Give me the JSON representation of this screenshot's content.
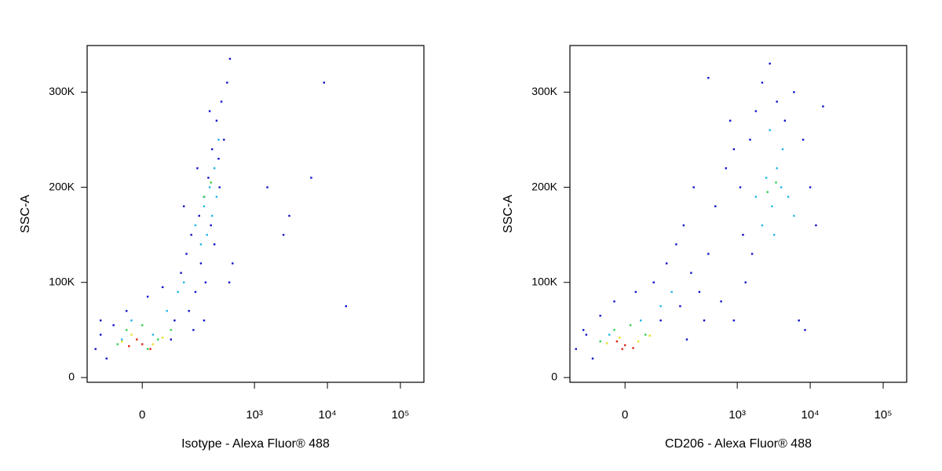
{
  "chart_data": [
    {
      "type": "scatter",
      "xlabel": "Isotype - Alexa Fluor® 488",
      "ylabel": "SSC-A",
      "xscale": "biexponential",
      "xlim": [
        -160,
        210000
      ],
      "ylim": [
        -5000,
        349000
      ],
      "xticks": [
        0,
        {
          "value": 1000,
          "label": "10³"
        },
        {
          "value": 10000,
          "label": "10⁴"
        },
        {
          "value": 100000,
          "label": "10⁵"
        }
      ],
      "yticks": [
        0,
        {
          "value": 100000,
          "label": "100K"
        },
        {
          "value": 200000,
          "label": "200K"
        },
        {
          "value": 300000,
          "label": "300K"
        }
      ],
      "series": [
        {
          "color": "#1010c8",
          "x": [
            -120,
            -100,
            -80,
            -60,
            -30,
            10,
            40,
            70,
            90,
            110,
            130,
            150,
            170,
            200,
            230,
            260,
            300,
            350,
            420,
            460,
            120,
            180,
            250,
            320,
            1500,
            3000,
            6000,
            9000,
            18000,
            2500,
            -100,
            60,
            140,
            210,
            280,
            380,
            100,
            160,
            240,
            330,
            200,
            450,
            500
          ],
          "values": [
            30000,
            45000,
            20000,
            55000,
            70000,
            85000,
            95000,
            60000,
            110000,
            130000,
            150000,
            90000,
            170000,
            190000,
            210000,
            240000,
            270000,
            290000,
            310000,
            335000,
            70000,
            120000,
            160000,
            230000,
            200000,
            170000,
            210000,
            310000,
            75000,
            150000,
            60000,
            40000,
            50000,
            100000,
            140000,
            250000,
            180000,
            220000,
            280000,
            200000,
            60000,
            100000,
            120000
          ]
        },
        {
          "color": "#20b4e8",
          "x": [
            -40,
            -20,
            20,
            50,
            80,
            150,
            200,
            240,
            280,
            300,
            260,
            220,
            180,
            320,
            100
          ],
          "values": [
            40000,
            60000,
            45000,
            70000,
            90000,
            160000,
            180000,
            200000,
            220000,
            190000,
            170000,
            150000,
            140000,
            250000,
            100000
          ]
        },
        {
          "color": "#30d050",
          "x": [
            -30,
            0,
            30,
            60,
            -50,
            10,
            200,
            250
          ],
          "values": [
            50000,
            55000,
            40000,
            50000,
            35000,
            30000,
            190000,
            205000
          ]
        },
        {
          "color": "#e8e020",
          "x": [
            -20,
            20,
            40,
            -40
          ],
          "values": [
            45000,
            35000,
            42000,
            38000
          ]
        },
        {
          "color": "#e02010",
          "x": [
            0,
            -10,
            15,
            -25
          ],
          "values": [
            35000,
            40000,
            30000,
            33000
          ]
        }
      ]
    },
    {
      "type": "scatter",
      "xlabel": "CD206 - Alexa Fluor® 488",
      "ylabel": "SSC-A",
      "xscale": "biexponential",
      "xlim": [
        -160,
        210000
      ],
      "ylim": [
        -5000,
        349000
      ],
      "xticks": [
        0,
        {
          "value": 1000,
          "label": "10³"
        },
        {
          "value": 10000,
          "label": "10⁴"
        },
        {
          "value": 100000,
          "label": "10⁵"
        }
      ],
      "yticks": [
        0,
        {
          "value": 100000,
          "label": "100K"
        },
        {
          "value": 200000,
          "label": "200K"
        },
        {
          "value": 300000,
          "label": "300K"
        }
      ],
      "series": [
        {
          "color": "#1010c8",
          "x": [
            -130,
            -100,
            -70,
            -50,
            -20,
            20,
            60,
            100,
            140,
            180,
            230,
            300,
            400,
            500,
            600,
            700,
            900,
            1200,
            1500,
            1800,
            2200,
            2800,
            3500,
            4500,
            6000,
            8000,
            10000,
            12000,
            7000,
            8500,
            15000,
            900,
            1100,
            1300,
            1600,
            400,
            800,
            250,
            160,
            80,
            -90,
            200,
            350
          ],
          "values": [
            30000,
            50000,
            20000,
            65000,
            80000,
            90000,
            100000,
            120000,
            140000,
            160000,
            110000,
            90000,
            130000,
            180000,
            80000,
            220000,
            60000,
            150000,
            250000,
            280000,
            310000,
            330000,
            290000,
            270000,
            300000,
            250000,
            200000,
            160000,
            60000,
            50000,
            285000,
            240000,
            200000,
            100000,
            130000,
            315000,
            270000,
            200000,
            75000,
            60000,
            45000,
            40000,
            60000
          ]
        },
        {
          "color": "#20b4e8",
          "x": [
            1800,
            2500,
            3000,
            3500,
            4000,
            5000,
            2200,
            4200,
            6000,
            3200,
            -30,
            30,
            80,
            120,
            2800
          ],
          "values": [
            190000,
            210000,
            180000,
            220000,
            200000,
            190000,
            160000,
            240000,
            170000,
            150000,
            45000,
            60000,
            75000,
            90000,
            260000
          ]
        },
        {
          "color": "#30d050",
          "x": [
            -20,
            10,
            40,
            -50,
            2600,
            3400
          ],
          "values": [
            50000,
            55000,
            45000,
            38000,
            195000,
            205000
          ]
        },
        {
          "color": "#e8e020",
          "x": [
            -10,
            25,
            50,
            -35
          ],
          "values": [
            42000,
            38000,
            44000,
            36000
          ]
        },
        {
          "color": "#e02010",
          "x": [
            0,
            -15,
            15,
            -5
          ],
          "values": [
            34000,
            38000,
            31000,
            30000
          ]
        }
      ]
    }
  ]
}
